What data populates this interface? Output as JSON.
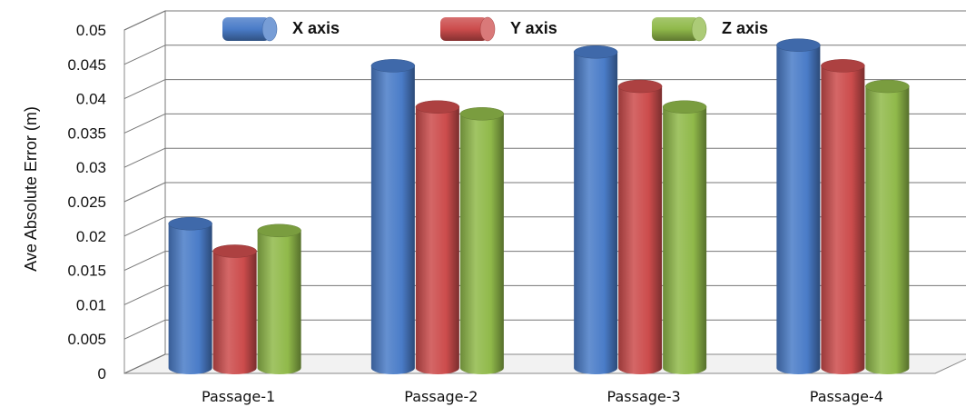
{
  "chart_data": {
    "type": "bar",
    "title": "",
    "xlabel": "",
    "ylabel": "Ave Absolute Error (m)",
    "categories": [
      "Passage-1",
      "Passage-2",
      "Passage-3",
      "Passage-4"
    ],
    "series": [
      {
        "name": "X axis",
        "color": "#4a7cc8",
        "values": [
          0.021,
          0.044,
          0.046,
          0.047
        ]
      },
      {
        "name": "Y axis",
        "color": "#cc4c4c",
        "values": [
          0.017,
          0.038,
          0.041,
          0.044
        ]
      },
      {
        "name": "Z axis",
        "color": "#90b94a",
        "values": [
          0.02,
          0.037,
          0.038,
          0.041
        ]
      }
    ],
    "ylim": [
      0,
      0.05
    ],
    "yticks": [
      "0",
      "0.005",
      "0.01",
      "0.015",
      "0.02",
      "0.025",
      "0.03",
      "0.035",
      "0.04",
      "0.045",
      "0.05"
    ],
    "grid": true,
    "legend": "top",
    "style": "3d-cylinder"
  }
}
